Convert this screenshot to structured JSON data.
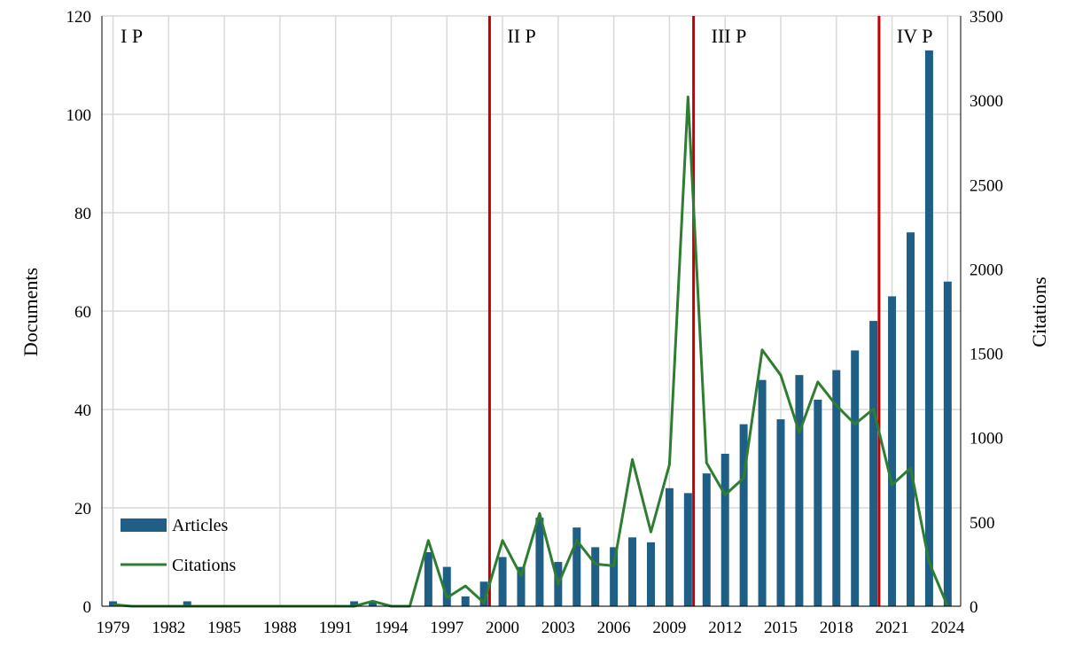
{
  "chart_data": {
    "type": "bar+line",
    "title": "",
    "ylabel_left": "Documents",
    "ylabel_right": "Citations",
    "ylim_left": [
      0,
      120
    ],
    "ylim_right": [
      0,
      3500
    ],
    "yticks_left": [
      0,
      20,
      40,
      60,
      80,
      100,
      120
    ],
    "yticks_right": [
      0,
      500,
      1000,
      1500,
      2000,
      2500,
      3000,
      3500
    ],
    "xticks": [
      "1979",
      "1982",
      "1985",
      "1988",
      "1991",
      "1994",
      "1997",
      "2000",
      "2003",
      "2006",
      "2009",
      "2012",
      "2015",
      "2018",
      "2021",
      "2024"
    ],
    "years": [
      1979,
      1980,
      1981,
      1982,
      1983,
      1984,
      1985,
      1986,
      1987,
      1988,
      1989,
      1990,
      1991,
      1992,
      1993,
      1994,
      1995,
      1996,
      1997,
      1998,
      1999,
      2000,
      2001,
      2002,
      2003,
      2004,
      2005,
      2006,
      2007,
      2008,
      2009,
      2010,
      2011,
      2012,
      2013,
      2014,
      2015,
      2016,
      2017,
      2018,
      2019,
      2020,
      2021,
      2022,
      2023,
      2024
    ],
    "grid": true,
    "legend_position": "bottom-left",
    "series": [
      {
        "name": "Articles",
        "kind": "bar",
        "axis": "left",
        "color": "#1f5f85",
        "values": [
          1,
          0,
          0,
          0,
          1,
          0,
          0,
          0,
          0,
          0,
          0,
          0,
          0,
          1,
          1,
          0,
          0,
          11,
          8,
          2,
          5,
          10,
          8,
          18,
          9,
          16,
          12,
          12,
          14,
          13,
          24,
          23,
          27,
          31,
          37,
          46,
          38,
          47,
          42,
          48,
          52,
          58,
          63,
          76,
          113,
          66
        ]
      },
      {
        "name": "Citations",
        "kind": "line",
        "axis": "right",
        "color": "#2e7d32",
        "values": [
          10,
          0,
          0,
          0,
          0,
          0,
          0,
          0,
          0,
          0,
          0,
          0,
          0,
          0,
          30,
          0,
          0,
          390,
          50,
          120,
          20,
          390,
          180,
          550,
          130,
          390,
          250,
          240,
          870,
          440,
          840,
          3020,
          850,
          660,
          760,
          1520,
          1370,
          1030,
          1330,
          1190,
          1080,
          1170,
          720,
          820,
          260,
          0
        ]
      }
    ],
    "periods": [
      {
        "label": "I P",
        "start_year": 1979
      },
      {
        "label": "II P",
        "start_year": 1999.3
      },
      {
        "label": "III P",
        "start_year": 2010.3
      },
      {
        "label": "IV P",
        "start_year": 2020.3
      }
    ],
    "period_line_color": "#c00000"
  }
}
